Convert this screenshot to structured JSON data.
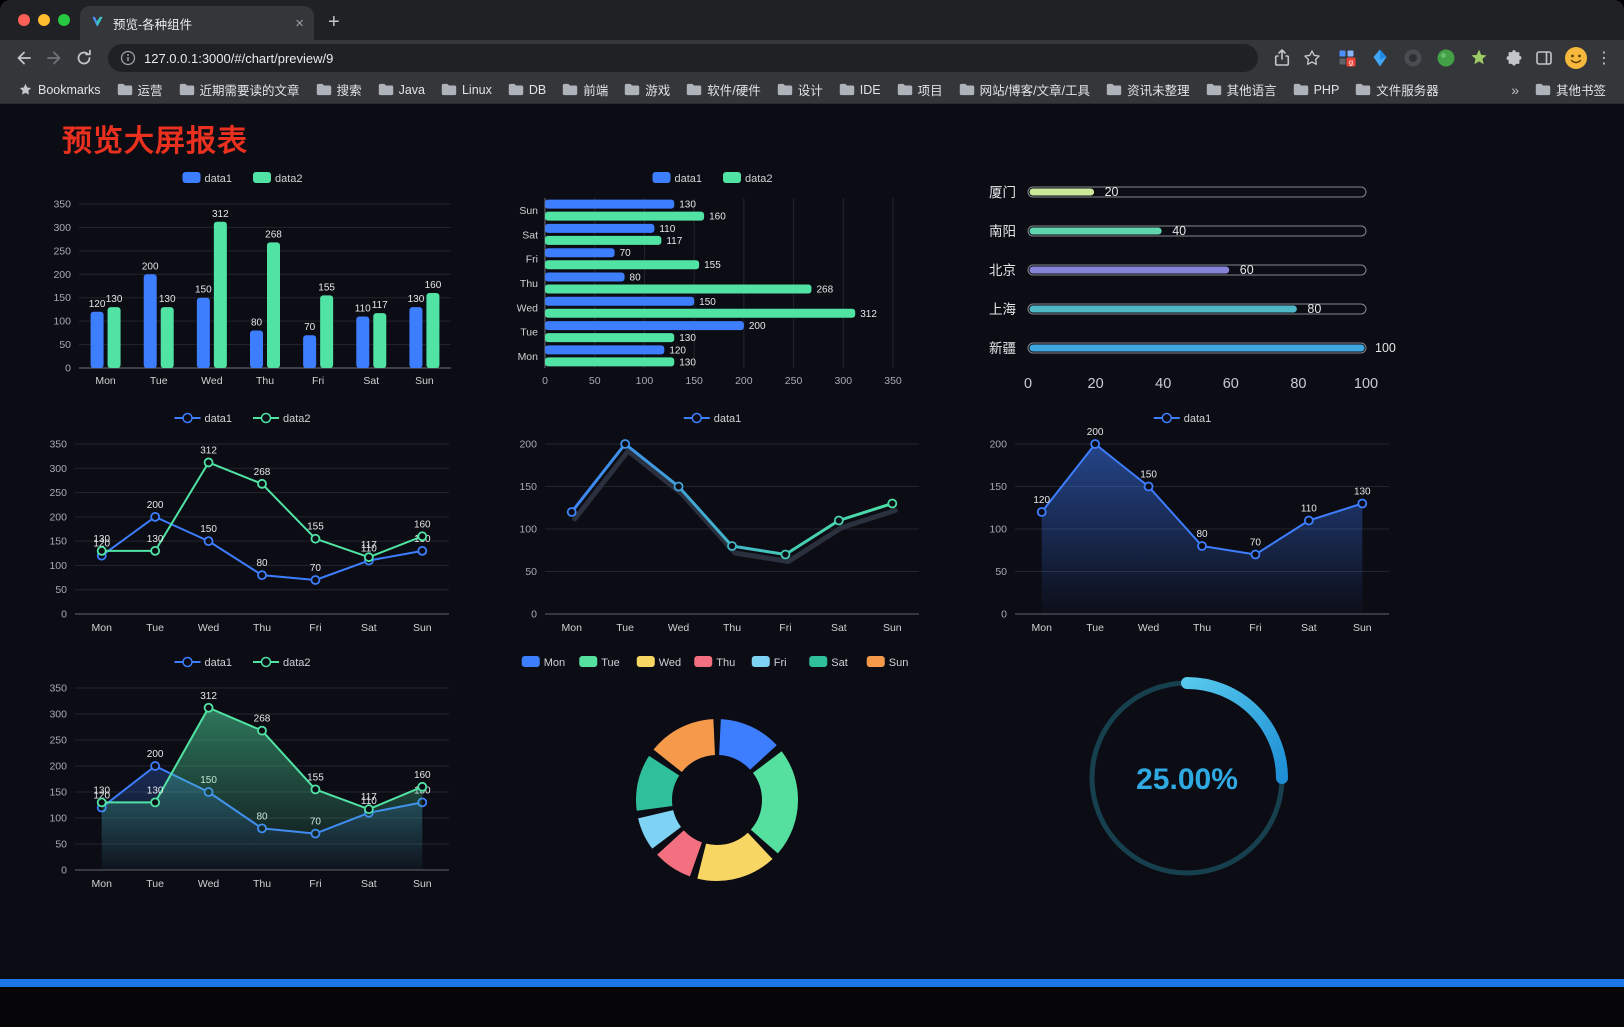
{
  "browser": {
    "tab_title": "预览-各种组件",
    "url": "127.0.0.1:3000/#/chart/preview/9",
    "bookmarks_label": "Bookmarks",
    "other_bookmarks_label": "其他书签",
    "overflow_chevron": "»",
    "glyphs": {
      "close": "×",
      "new_tab": "+",
      "menu": "⋮"
    },
    "bookmark_folders": [
      "运营",
      "近期需要读的文章",
      "搜索",
      "Java",
      "Linux",
      "DB",
      "前端",
      "游戏",
      "软件/硬件",
      "设计",
      "IDE",
      "项目",
      "网站/博客/文章/工具",
      "资讯未整理",
      "其他语言",
      "PHP",
      "文件服务器"
    ]
  },
  "page": {
    "title": "预览大屏报表",
    "background": "#0c0c14",
    "accent_color": "#1c77e8"
  },
  "chart_data": [
    {
      "type": "bar",
      "categories": [
        "Mon",
        "Tue",
        "Wed",
        "Thu",
        "Fri",
        "Sat",
        "Sun"
      ],
      "series": [
        {
          "name": "data1",
          "color": "#3D7EFF",
          "values": [
            120,
            200,
            150,
            80,
            70,
            110,
            130
          ]
        },
        {
          "name": "data2",
          "color": "#50E3A4",
          "values": [
            130,
            130,
            312,
            268,
            155,
            117,
            160
          ]
        }
      ],
      "ylim": [
        0,
        350
      ],
      "yticks": [
        0,
        50,
        100,
        150,
        200,
        250,
        300,
        350
      ],
      "legend_position": "top"
    },
    {
      "type": "hbar",
      "categories": [
        "Mon",
        "Tue",
        "Wed",
        "Thu",
        "Fri",
        "Sat",
        "Sun"
      ],
      "series": [
        {
          "name": "data1",
          "color": "#3D7EFF",
          "values": [
            120,
            200,
            150,
            80,
            70,
            110,
            130
          ]
        },
        {
          "name": "data2",
          "color": "#50E3A4",
          "values": [
            130,
            130,
            312,
            268,
            155,
            117,
            160
          ]
        }
      ],
      "xlim": [
        0,
        350
      ],
      "xticks": [
        0,
        50,
        100,
        150,
        200,
        250,
        300,
        350
      ],
      "legend_position": "top"
    },
    {
      "type": "progress",
      "max": 100,
      "items": [
        {
          "label": "厦门",
          "value": 20,
          "color": "#CDE99A"
        },
        {
          "label": "南阳",
          "value": 40,
          "color": "#5FD6AD"
        },
        {
          "label": "北京",
          "value": 60,
          "color": "#8683D9"
        },
        {
          "label": "上海",
          "value": 80,
          "color": "#4FB6C6"
        },
        {
          "label": "新疆",
          "value": 100,
          "color": "#3FA7DF"
        }
      ],
      "xticks": [
        0,
        20,
        40,
        60,
        80,
        100
      ]
    },
    {
      "type": "line",
      "labels": true,
      "categories": [
        "Mon",
        "Tue",
        "Wed",
        "Thu",
        "Fri",
        "Sat",
        "Sun"
      ],
      "series": [
        {
          "name": "data1",
          "color": "#3D7EFF",
          "values": [
            120,
            200,
            150,
            80,
            70,
            110,
            130
          ]
        },
        {
          "name": "data2",
          "color": "#50E3A4",
          "values": [
            130,
            130,
            312,
            268,
            155,
            117,
            160
          ]
        }
      ],
      "ylim": [
        0,
        350
      ],
      "yticks": [
        0,
        50,
        100,
        150,
        200,
        250,
        300,
        350
      ]
    },
    {
      "type": "line",
      "labels": false,
      "gradient": true,
      "shadow": true,
      "gradient_stops": [
        "#3D7EFF",
        "#3F9FDB",
        "#45CDB4",
        "#50E3A4"
      ],
      "categories": [
        "Mon",
        "Tue",
        "Wed",
        "Thu",
        "Fri",
        "Sat",
        "Sun"
      ],
      "series": [
        {
          "name": "data1",
          "color": "gradient",
          "values": [
            120,
            200,
            150,
            80,
            70,
            110,
            130
          ]
        }
      ],
      "ylim": [
        0,
        200
      ],
      "yticks": [
        0,
        50,
        100,
        150,
        200
      ]
    },
    {
      "type": "line",
      "labels": true,
      "categories": [
        "Mon",
        "Tue",
        "Wed",
        "Thu",
        "Fri",
        "Sat",
        "Sun"
      ],
      "series": [
        {
          "name": "data1",
          "color": "#3D7EFF",
          "values": [
            120,
            200,
            150,
            80,
            70,
            110,
            130
          ],
          "area": true,
          "area_opacity": 0.5
        }
      ],
      "ylim": [
        0,
        200
      ],
      "yticks": [
        0,
        50,
        100,
        150,
        200
      ]
    },
    {
      "type": "line",
      "labels": true,
      "categories": [
        "Mon",
        "Tue",
        "Wed",
        "Thu",
        "Fri",
        "Sat",
        "Sun"
      ],
      "series": [
        {
          "name": "data1",
          "color": "#3D7EFF",
          "values": [
            120,
            200,
            150,
            80,
            70,
            110,
            130
          ],
          "area": true,
          "area_opacity": 0.28
        },
        {
          "name": "data2",
          "color": "#50E3A4",
          "values": [
            130,
            130,
            312,
            268,
            155,
            117,
            160
          ],
          "area": true,
          "area_opacity": 0.5
        }
      ],
      "ylim": [
        0,
        350
      ],
      "yticks": [
        0,
        50,
        100,
        150,
        200,
        250,
        300,
        350
      ]
    },
    {
      "type": "donut",
      "items": [
        {
          "label": "Mon",
          "value": 120,
          "color": "#3D7EFF"
        },
        {
          "label": "Tue",
          "value": 200,
          "color": "#55E0A0"
        },
        {
          "label": "Wed",
          "value": 150,
          "color": "#F7D664"
        },
        {
          "label": "Thu",
          "value": 80,
          "color": "#F2707F"
        },
        {
          "label": "Fri",
          "value": 70,
          "color": "#7ED3F4"
        },
        {
          "label": "Sat",
          "value": 110,
          "color": "#2FBF9B"
        },
        {
          "label": "Sun",
          "value": 130,
          "color": "#F59A4B"
        }
      ]
    },
    {
      "type": "gauge",
      "value": 25,
      "display": "25.00%",
      "color": "#2EA9E2",
      "track_color": "#17404E",
      "gradient": [
        "#56C8EC",
        "#1E8FD5"
      ]
    }
  ]
}
